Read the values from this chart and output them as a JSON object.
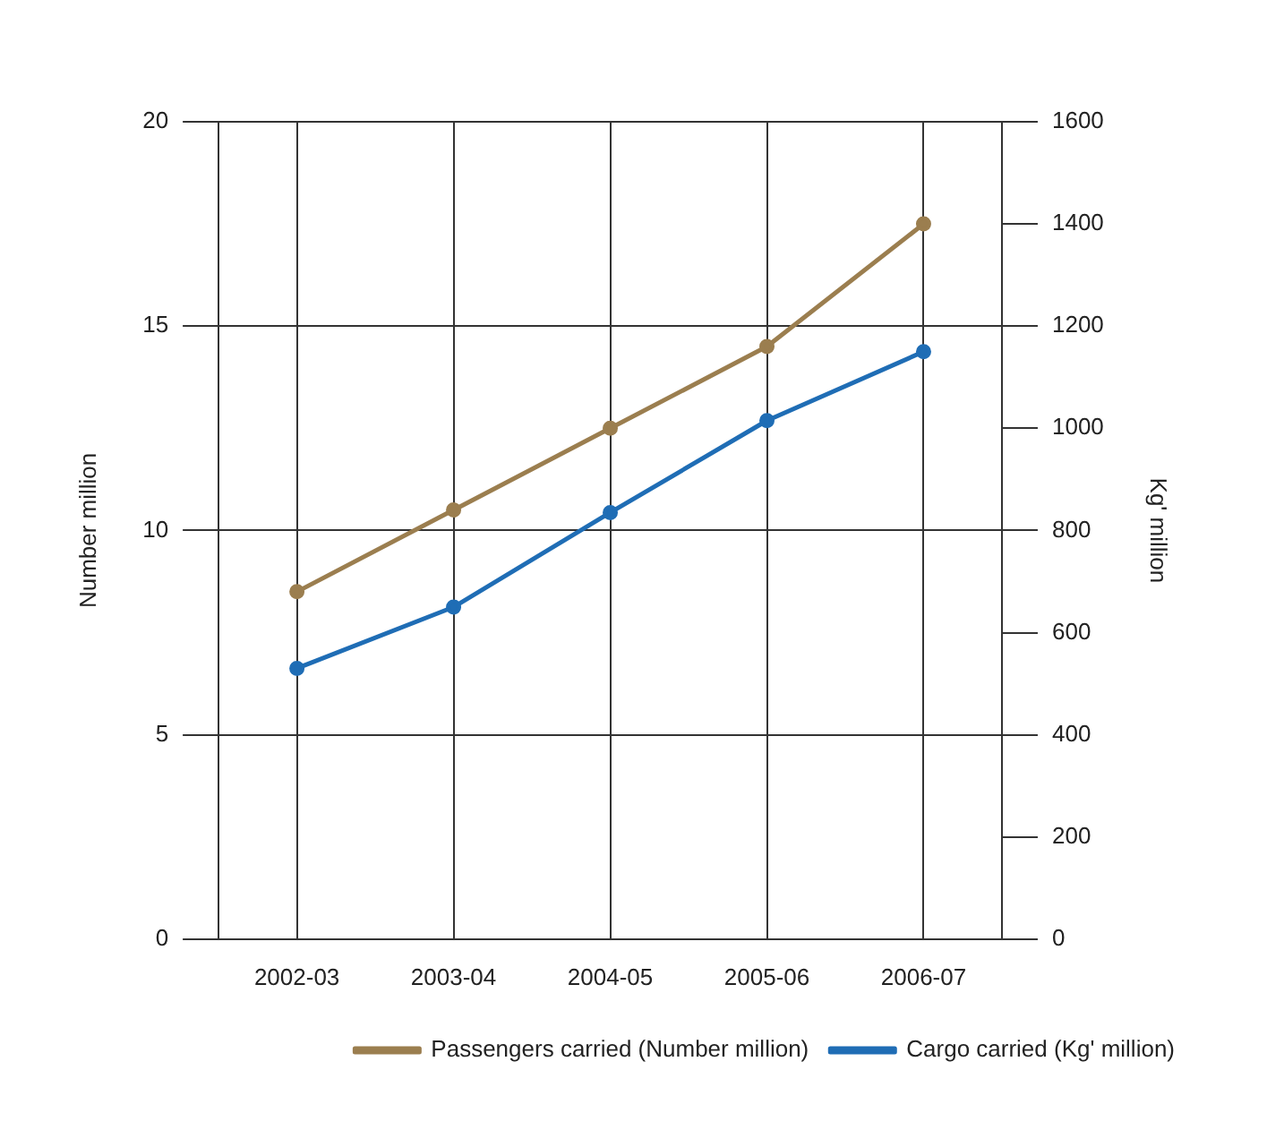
{
  "chart_data": {
    "type": "line",
    "categories": [
      "2002-03",
      "2003-04",
      "2004-05",
      "2005-06",
      "2006-07"
    ],
    "series": [
      {
        "name": "Passengers carried (Number million)",
        "color": "#9b7e4f",
        "values": [
          8.5,
          10.5,
          12.5,
          14.5,
          17.5
        ]
      },
      {
        "name": "Cargo carried (Kg' million)",
        "color": "#1f6db5",
        "values": [
          530,
          650,
          835,
          1015,
          1150
        ],
        "axis": "y2"
      }
    ],
    "ylabel": "Number million",
    "y2label": "Kg' million",
    "ylim": [
      0,
      20
    ],
    "yticks": [
      0,
      5,
      10,
      15,
      20
    ],
    "y2lim": [
      0,
      1600
    ],
    "y2ticks": [
      0,
      200,
      400,
      600,
      800,
      1000,
      1200,
      1400,
      1600
    ],
    "grid": true,
    "legend": "bottom right",
    "marker": "circle",
    "line_style": "solid"
  }
}
